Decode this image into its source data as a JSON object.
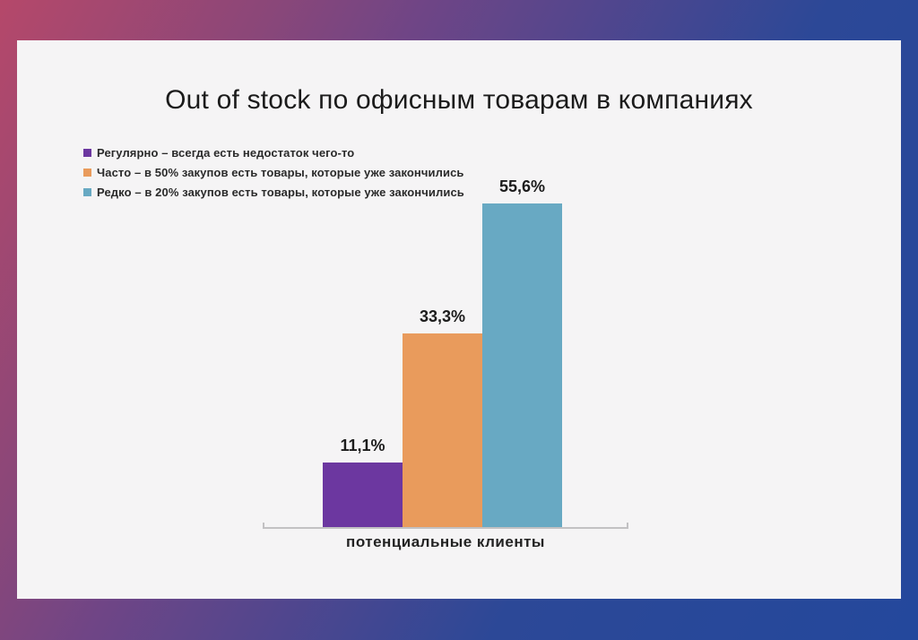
{
  "slide": {
    "background_gradient": {
      "start": "#b5486a",
      "mid": "#6f4586",
      "end": "#24489c"
    },
    "panel_bg": "#f5f4f5"
  },
  "chart_data": {
    "type": "bar",
    "title": "Out of stock по офисным товарам в компаниях",
    "categories": [
      "потенциальные клиенты"
    ],
    "xlabel": "потенциальные клиенты",
    "ylabel": "",
    "ylim": [
      0,
      60
    ],
    "grid": false,
    "legend_position": "top-left",
    "series": [
      {
        "name": "Регулярно – всегда есть недостаток чего-то",
        "value": 11.1,
        "display_label": "11,1%",
        "color": "#6c37a0"
      },
      {
        "name": "Часто – в 50% закупов есть товары, которые уже закончились",
        "value": 33.3,
        "display_label": "33,3%",
        "color": "#e99b5c"
      },
      {
        "name": "Редко – в 20% закупов есть товары, которые уже закончились",
        "value": 55.6,
        "display_label": "55,6%",
        "color": "#68a9c3"
      }
    ]
  }
}
